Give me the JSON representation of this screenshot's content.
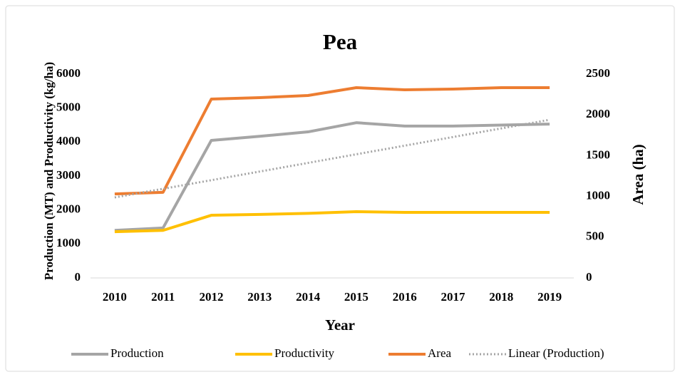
{
  "chart_data": {
    "type": "line",
    "title": "Pea",
    "x_label": "Year",
    "y_label": "Production (MT) and Productivity (kg/ha)",
    "y2_label": "Area (ha)",
    "categories": [
      "2010",
      "2011",
      "2012",
      "2013",
      "2014",
      "2015",
      "2016",
      "2017",
      "2018",
      "2019"
    ],
    "ylim": [
      0,
      6000
    ],
    "yticks": [
      0,
      1000,
      2000,
      3000,
      4000,
      5000,
      6000
    ],
    "y2lim": [
      0,
      2500
    ],
    "y2ticks": [
      0,
      500,
      1000,
      1500,
      2000,
      2500
    ],
    "grid": false,
    "legend": "bottom",
    "series": [
      {
        "name": "Production",
        "color": "#a5a5a5",
        "values": [
          1400,
          1470,
          4050,
          4170,
          4300,
          4570,
          4470,
          4470,
          4500,
          4530
        ]
      },
      {
        "name": "Productivity",
        "color": "#ffc000",
        "values": [
          1360,
          1400,
          1845,
          1870,
          1900,
          1950,
          1930,
          1930,
          1930,
          1930
        ]
      },
      {
        "name": "Area",
        "color": "#ed7d31",
        "axis": "y2",
        "values": [
          1030,
          1050,
          2194,
          2211,
          2238,
          2334,
          2308,
          2316,
          2334,
          2334
        ]
      },
      {
        "name": "Linear (Production)",
        "color": "#a5a5a5",
        "style": "dotted",
        "values": [
          2370,
          2624,
          2878,
          3132,
          3386,
          3640,
          3894,
          4148,
          4402,
          4656
        ]
      }
    ]
  }
}
